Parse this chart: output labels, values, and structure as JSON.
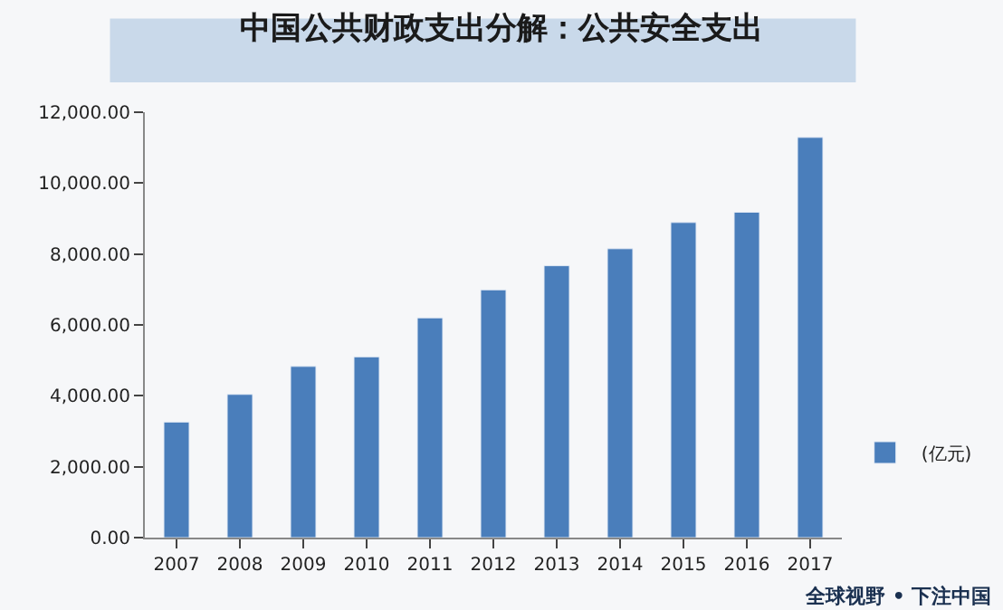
{
  "chart_data": {
    "type": "bar",
    "title": "中国公共财政支出分解：公共安全支出",
    "categories": [
      "2007",
      "2008",
      "2009",
      "2010",
      "2011",
      "2012",
      "2013",
      "2014",
      "2015",
      "2016",
      "2017"
    ],
    "series": [
      {
        "name": "(亿元)",
        "color": "#4a7ebb",
        "values": [
          3260,
          4040,
          4830,
          5100,
          6200,
          6990,
          7670,
          8150,
          8890,
          9180,
          11290
        ]
      }
    ],
    "ylim": [
      0,
      12000
    ],
    "yticks": [
      {
        "value": 0,
        "label": "0.00"
      },
      {
        "value": 2000,
        "label": "2,000.00"
      },
      {
        "value": 4000,
        "label": "4,000.00"
      },
      {
        "value": 6000,
        "label": "6,000.00"
      },
      {
        "value": 8000,
        "label": "8,000.00"
      },
      {
        "value": 10000,
        "label": "10,000.00"
      },
      {
        "value": 12000,
        "label": "12,000.00"
      }
    ],
    "grid": false,
    "legend": "right",
    "annotations": [
      "全球视野 • 下注中国"
    ]
  }
}
